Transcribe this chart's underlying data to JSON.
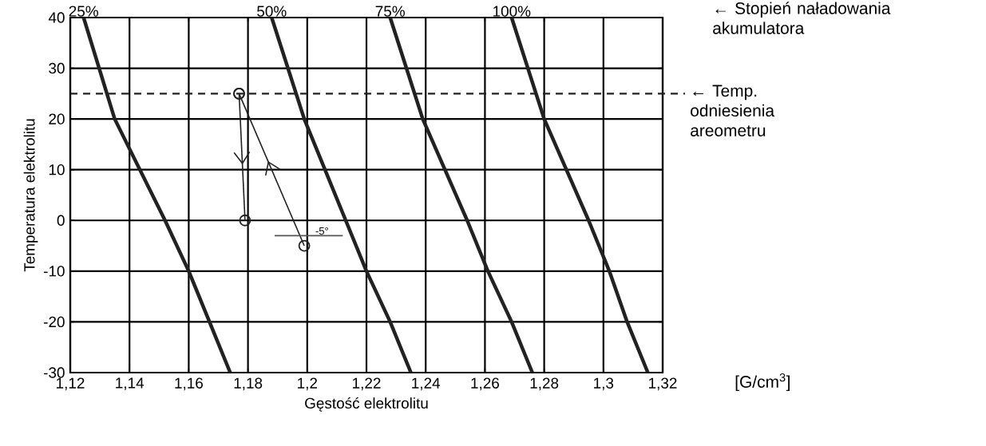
{
  "chart_data": {
    "type": "line",
    "xlabel": "Gęstość elektrolitu",
    "ylabel": "Temperatura elektrolitu",
    "xlim": [
      1.12,
      1.32
    ],
    "ylim": [
      -30,
      40
    ],
    "xticks": [
      {
        "value": 1.12,
        "label": "1,12"
      },
      {
        "value": 1.14,
        "label": "1,14"
      },
      {
        "value": 1.16,
        "label": "1,16"
      },
      {
        "value": 1.18,
        "label": "1,18"
      },
      {
        "value": 1.2,
        "label": "1,2"
      },
      {
        "value": 1.22,
        "label": "1,22"
      },
      {
        "value": 1.24,
        "label": "1,24"
      },
      {
        "value": 1.26,
        "label": "1,26"
      },
      {
        "value": 1.28,
        "label": "1,28"
      },
      {
        "value": 1.3,
        "label": "1,3"
      },
      {
        "value": 1.32,
        "label": "1,32"
      }
    ],
    "yticks": [
      -30,
      -20,
      -10,
      0,
      10,
      20,
      30,
      40
    ],
    "grid": true,
    "series": [
      {
        "name": "25%",
        "color": "#222222",
        "marker": "none",
        "x": [
          1.1245,
          1.135,
          1.152,
          1.16,
          1.167,
          1.174
        ],
        "values": [
          40,
          20,
          0,
          -10,
          -20,
          -30
        ]
      },
      {
        "name": "50%",
        "color": "#222222",
        "marker": "none",
        "x": [
          1.188,
          1.199,
          1.213,
          1.22,
          1.228,
          1.235
        ],
        "values": [
          40,
          20,
          0,
          -10,
          -20,
          -30
        ]
      },
      {
        "name": "75%",
        "color": "#222222",
        "marker": "none",
        "x": [
          1.228,
          1.239,
          1.254,
          1.261,
          1.269,
          1.276
        ],
        "values": [
          40,
          20,
          0,
          -10,
          -20,
          -30
        ]
      },
      {
        "name": "100%",
        "color": "#222222",
        "marker": "none",
        "x": [
          1.269,
          1.28,
          1.295,
          1.302,
          1.308,
          1.315
        ],
        "values": [
          40,
          20,
          0,
          -10,
          -20,
          -30
        ]
      },
      {
        "color": "#222222",
        "marker": "circle",
        "x": [
          1.177,
          1.179
        ],
        "values": [
          25,
          0
        ]
      },
      {
        "color": "#222222",
        "marker": "circle",
        "x": [
          1.199,
          1.177
        ],
        "values": [
          -5,
          25
        ]
      },
      {
        "color": "#555555",
        "marker": "none",
        "x": [
          1.189,
          1.212
        ],
        "values": [
          -3,
          -3
        ]
      }
    ],
    "ref_lines": [
      {
        "axis": "y",
        "value": 25,
        "label": "← Temp. odniesienia areometru",
        "line_style": "dashed",
        "color": "#222222"
      }
    ],
    "annotations": [
      "← Stopień naładowania akumulatora",
      "[G/cm$^{3}$]",
      {
        "text": "-5°",
        "x": 1.205,
        "y": -3
      }
    ]
  }
}
